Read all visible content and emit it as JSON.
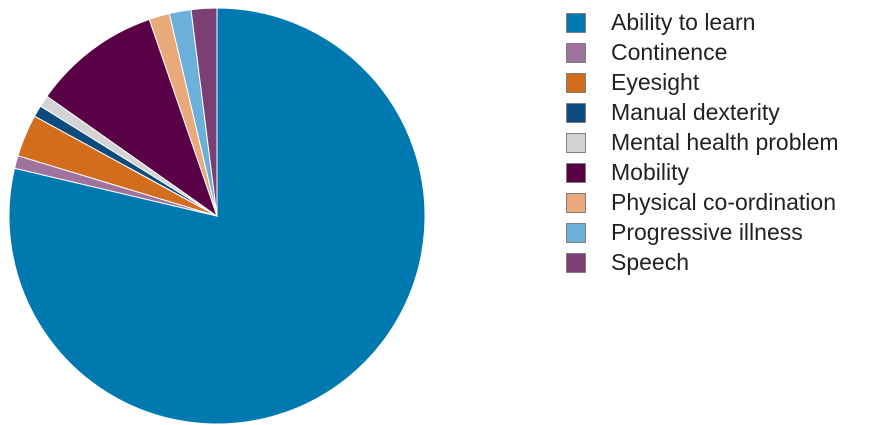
{
  "chart_data": {
    "type": "pie",
    "title": "",
    "start_angle_deg": 0,
    "direction": "clockwise",
    "slices": [
      {
        "label": "Ability to learn",
        "value": 79.0,
        "color": "#0079b0"
      },
      {
        "label": "Continence",
        "value": 1.0,
        "color": "#a0729e"
      },
      {
        "label": "Eyesight",
        "value": 3.3,
        "color": "#d26d1e"
      },
      {
        "label": "Manual dexterity",
        "value": 0.9,
        "color": "#0d4a7d"
      },
      {
        "label": "Mental health problem",
        "value": 0.9,
        "color": "#d3d3d3"
      },
      {
        "label": "Mobility",
        "value": 10.0,
        "color": "#5a0046"
      },
      {
        "label": "Physical co-ordination",
        "value": 1.6,
        "color": "#e9a97b"
      },
      {
        "label": "Progressive illness",
        "value": 1.7,
        "color": "#6ab0d8"
      },
      {
        "label": "Speech",
        "value": 2.0,
        "color": "#7b3f74"
      }
    ],
    "legend": {
      "position": "right"
    }
  }
}
